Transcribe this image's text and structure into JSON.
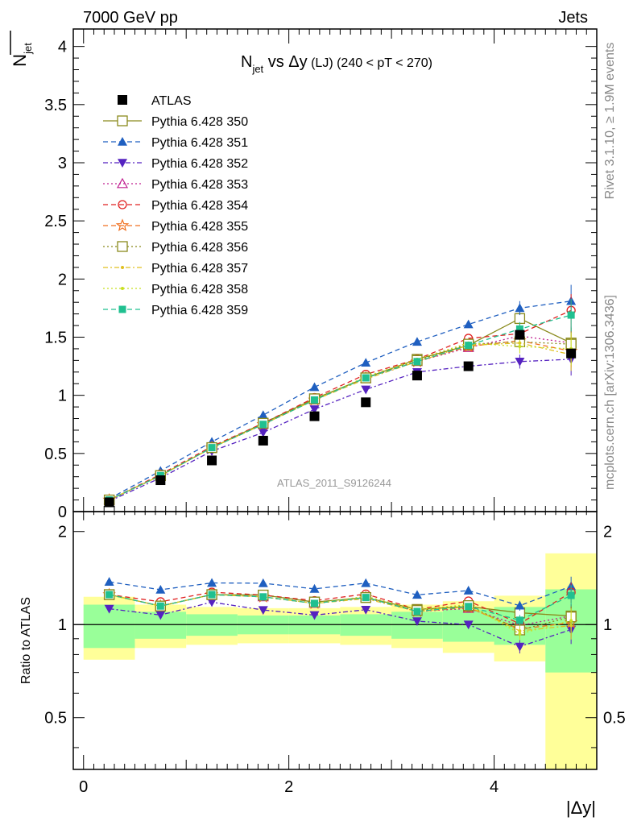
{
  "header": {
    "energy": "7000 GeV pp",
    "category": "Jets"
  },
  "side_labels": {
    "rivet": "Rivet 3.1.10, ≥ 1.9M events",
    "mcplots": "mcplots.cern.ch [arXiv:1306.3436]"
  },
  "colors": {
    "atlas": "#000000",
    "band_inner": "#99ff99",
    "band_outer": "#ffff99"
  },
  "chart_data": {
    "type": "scatter",
    "title": "N_jet vs Δy (LJ) (240 < pT < 270)",
    "title_parts": {
      "main": "N",
      "sub": "jet",
      "mid": " vs Δy",
      "small": " (LJ) (240 < pT < 270)"
    },
    "analysis_id": "ATLAS_2011_S9126244",
    "ylabel": "N_jet",
    "ylabel_parts": {
      "main": "N",
      "sub": "jet"
    },
    "xlabel": "|Δy|",
    "ratio_ylabel": "Ratio to ATLAS",
    "xlim": [
      -0.1,
      5.0
    ],
    "ylim": [
      0,
      4.15
    ],
    "ratio_ylim": [
      0.34,
      2.32
    ],
    "x_ticks": [
      "0",
      "2",
      "4"
    ],
    "y_ticks": [
      "0",
      "0.5",
      "1",
      "1.5",
      "2",
      "2.5",
      "3",
      "3.5",
      "4"
    ],
    "ratio_ticks": [
      "0.5",
      "1",
      "2"
    ],
    "x": [
      0.25,
      0.75,
      1.25,
      1.75,
      2.25,
      2.75,
      3.25,
      3.75,
      4.25,
      4.75
    ],
    "bin_edges": [
      0,
      0.5,
      1.0,
      1.5,
      2.0,
      2.5,
      3.0,
      3.5,
      4.0,
      4.5,
      5.0
    ],
    "data": {
      "name": "ATLAS",
      "values": [
        0.08,
        0.27,
        0.44,
        0.61,
        0.82,
        0.94,
        1.17,
        1.25,
        1.52,
        1.36
      ],
      "band_inner": [
        0.16,
        0.1,
        0.08,
        0.07,
        0.07,
        0.08,
        0.1,
        0.12,
        0.14,
        0.3
      ],
      "band_outer": [
        0.23,
        0.16,
        0.14,
        0.13,
        0.13,
        0.14,
        0.16,
        0.19,
        0.24,
        0.7
      ]
    },
    "series": [
      {
        "name": "Pythia 6.428 350",
        "color": "#8a8a1c",
        "marker": "square-open",
        "dash": "",
        "values": [
          0.1,
          0.31,
          0.55,
          0.76,
          0.97,
          1.15,
          1.31,
          1.43,
          1.66,
          1.45
        ]
      },
      {
        "name": "Pythia 6.428 351",
        "color": "#1f5fc0",
        "marker": "triangle-up",
        "dash": "6,4",
        "values": [
          0.11,
          0.35,
          0.6,
          0.83,
          1.07,
          1.28,
          1.46,
          1.61,
          1.75,
          1.81
        ]
      },
      {
        "name": "Pythia 6.428 352",
        "color": "#5522c0",
        "marker": "triangle-down",
        "dash": "6,3,2,3",
        "values": [
          0.09,
          0.29,
          0.52,
          0.68,
          0.88,
          1.05,
          1.2,
          1.25,
          1.29,
          1.31
        ]
      },
      {
        "name": "Pythia 6.428 353",
        "color": "#c02090",
        "marker": "triangle-open",
        "dash": "2,3",
        "values": [
          0.1,
          0.31,
          0.55,
          0.75,
          0.96,
          1.15,
          1.29,
          1.41,
          1.51,
          1.45
        ]
      },
      {
        "name": "Pythia 6.428 354",
        "color": "#e02020",
        "marker": "circle-open",
        "dash": "6,4",
        "values": [
          0.1,
          0.32,
          0.56,
          0.76,
          0.98,
          1.18,
          1.31,
          1.49,
          1.53,
          1.73
        ]
      },
      {
        "name": "Pythia 6.428 355",
        "color": "#f07020",
        "marker": "star-open",
        "dash": "6,4",
        "values": [
          0.1,
          0.31,
          0.55,
          0.75,
          0.96,
          1.15,
          1.29,
          1.42,
          1.47,
          1.38
        ]
      },
      {
        "name": "Pythia 6.428 356",
        "color": "#8a8a1c",
        "marker": "square-open",
        "dash": "2,3",
        "values": [
          0.1,
          0.31,
          0.55,
          0.76,
          0.97,
          1.15,
          1.3,
          1.44,
          1.46,
          1.44
        ]
      },
      {
        "name": "Pythia 6.428 357",
        "color": "#e0c020",
        "marker": "dot",
        "dash": "6,3,2,3",
        "values": [
          0.1,
          0.31,
          0.55,
          0.75,
          0.96,
          1.14,
          1.29,
          1.43,
          1.45,
          1.35
        ]
      },
      {
        "name": "Pythia 6.428 358",
        "color": "#c8e020",
        "marker": "dot",
        "dash": "2,3",
        "values": [
          0.1,
          0.31,
          0.55,
          0.75,
          0.96,
          1.16,
          1.31,
          1.45,
          1.42,
          1.4
        ]
      },
      {
        "name": "Pythia 6.428 359",
        "color": "#20c090",
        "marker": "square-filled",
        "dash": "6,4",
        "values": [
          0.1,
          0.31,
          0.55,
          0.75,
          0.96,
          1.15,
          1.29,
          1.43,
          1.57,
          1.69
        ]
      }
    ]
  }
}
